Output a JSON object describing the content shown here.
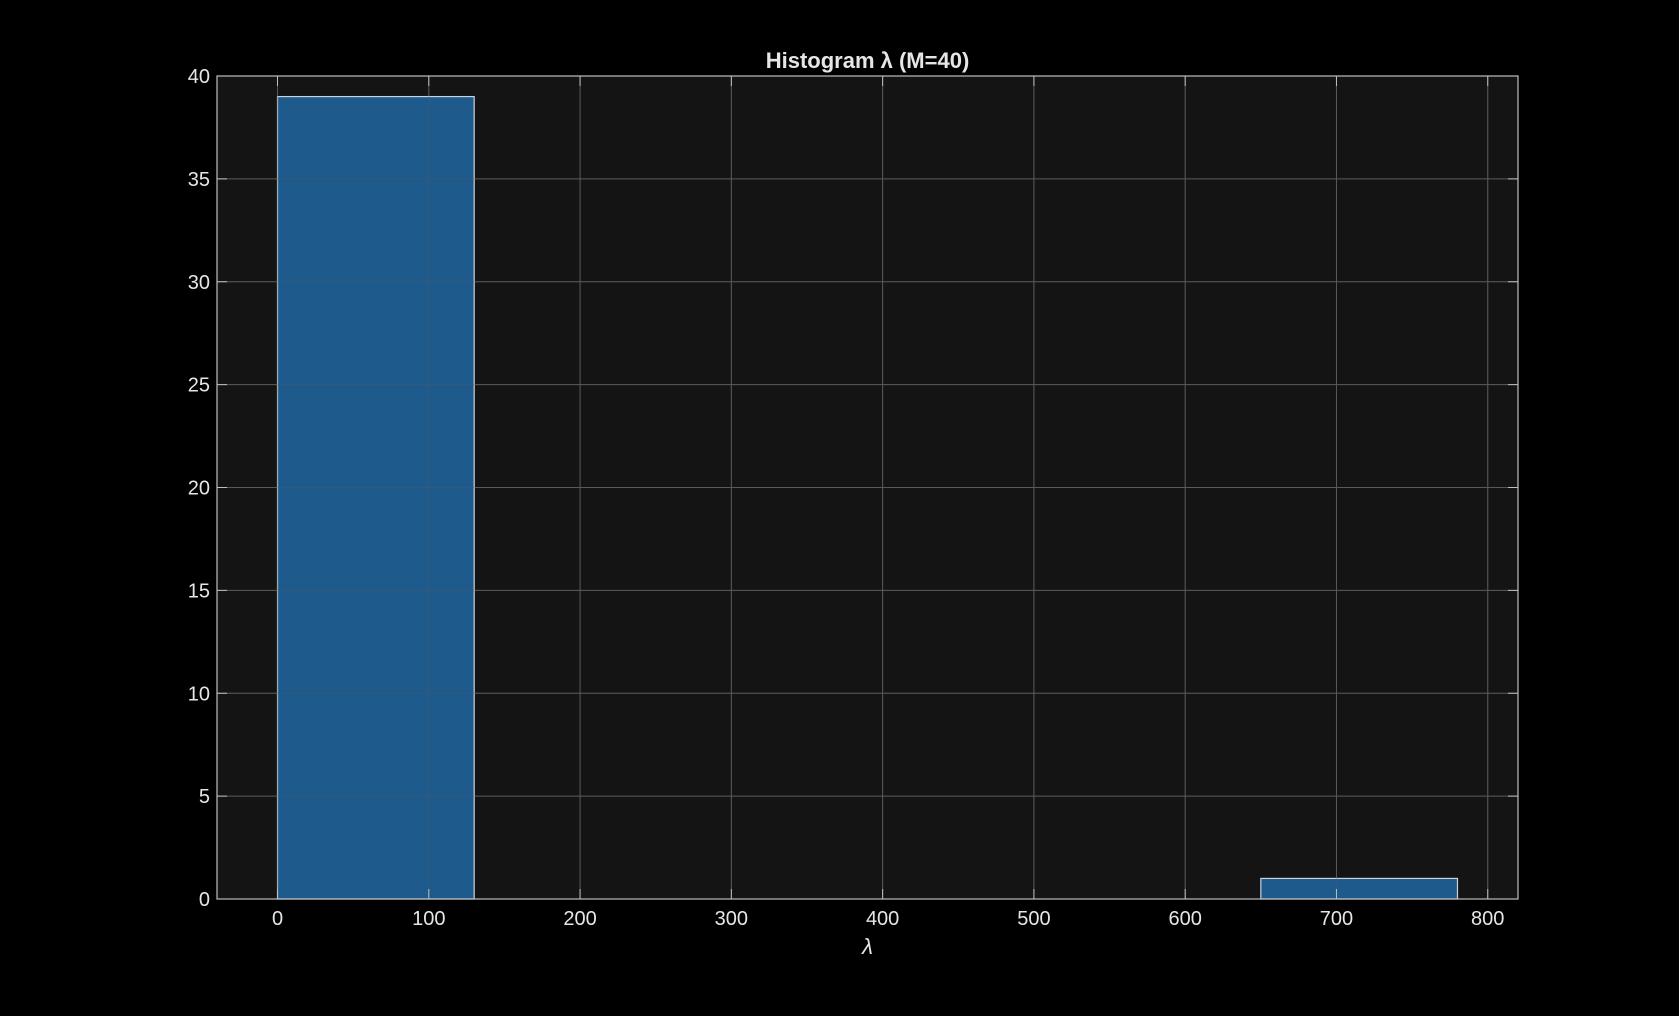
{
  "chart_data": {
    "type": "histogram",
    "title": "Histogram λ (M=40)",
    "xlabel": "λ",
    "ylabel": "",
    "xlim": [
      -40,
      820
    ],
    "ylim": [
      0,
      40
    ],
    "xticks": [
      0,
      100,
      200,
      300,
      400,
      500,
      600,
      700,
      800
    ],
    "yticks": [
      0,
      5,
      10,
      15,
      20,
      25,
      30,
      35,
      40
    ],
    "grid": true,
    "bins": [
      {
        "start": 0,
        "end": 130,
        "count": 39
      },
      {
        "start": 650,
        "end": 780,
        "count": 1
      }
    ],
    "colors": {
      "background": "#000000",
      "axes_background": "#141414",
      "bar_fill": "#1f5a8c",
      "bar_edge": "#c8d4e0",
      "grid": "#5a5a5a",
      "axes_edge": "#bfbfbf",
      "text": "#e6e6e6"
    }
  }
}
